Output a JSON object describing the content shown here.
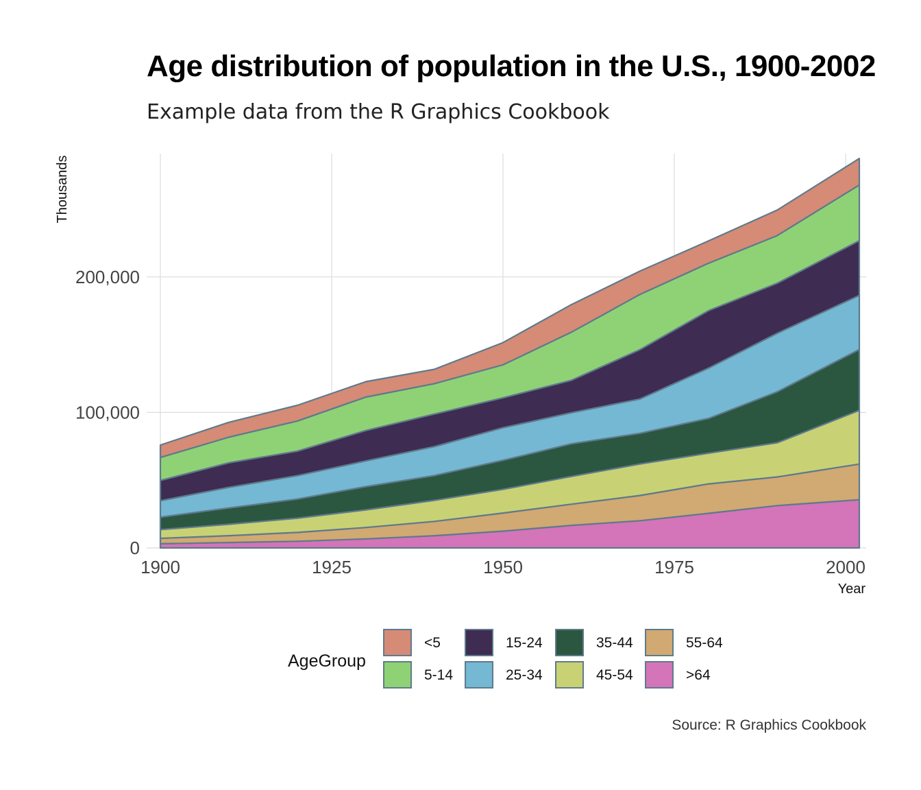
{
  "chart_data": {
    "type": "area",
    "stacked": true,
    "title": "Age distribution of population in the U.S., 1900-2002",
    "subtitle": "Example data from the R Graphics Cookbook",
    "caption": "Source: R Graphics Cookbook",
    "xlabel": "Year",
    "ylabel": "Thousands",
    "xlim": [
      1898,
      2003
    ],
    "ylim": [
      0,
      291000
    ],
    "x_ticks": [
      1900,
      1925,
      1950,
      1975,
      2000
    ],
    "x_tick_labels": [
      "1900",
      "1925",
      "1950",
      "1975",
      "2000"
    ],
    "y_ticks": [
      0,
      100000,
      200000
    ],
    "y_tick_labels": [
      "0",
      "100,000",
      "200,000"
    ],
    "grid": true,
    "legend_title": "AgeGroup",
    "legend_position": "bottom",
    "outline_color": "#5f7a8c",
    "x": [
      1900,
      1910,
      1920,
      1930,
      1940,
      1950,
      1960,
      1970,
      1980,
      1990,
      2002
    ],
    "series": [
      {
        "name": ">64",
        "color": "#d474b9",
        "values": [
          3099,
          3986,
          4929,
          6705,
          9031,
          12397,
          16675,
          20107,
          25550,
          31235,
          35602
        ]
      },
      {
        "name": "55-64",
        "color": "#d1a972",
        "values": [
          4009,
          5056,
          6532,
          8397,
          10572,
          13370,
          15627,
          18590,
          21700,
          21148,
          26306
        ]
      },
      {
        "name": "45-54",
        "color": "#c8d274",
        "values": [
          6396,
          8440,
          10505,
          12969,
          15512,
          17453,
          20485,
          23235,
          22708,
          25223,
          39617
        ]
      },
      {
        "name": "35-44",
        "color": "#2b5740",
        "values": [
          9206,
          12005,
          14121,
          17199,
          18333,
          21450,
          24081,
          22696,
          25635,
          37578,
          44919
        ]
      },
      {
        "name": "25-34",
        "color": "#74b8d3",
        "values": [
          12113,
          15207,
          17239,
          18954,
          21339,
          24036,
          22919,
          25292,
          37082,
          43175,
          39928
        ]
      },
      {
        "name": "15-24",
        "color": "#3f2c52",
        "values": [
          14951,
          18155,
          18124,
          22484,
          24033,
          22098,
          24020,
          36496,
          42487,
          37013,
          40413
        ]
      },
      {
        "name": "5-14",
        "color": "#8fd275",
        "values": [
          16994,
          18863,
          22240,
          24626,
          22431,
          24319,
          35465,
          40746,
          34942,
          35095,
          41064
        ]
      },
      {
        "name": "<5",
        "color": "#d58b76",
        "values": [
          9170,
          11027,
          11573,
          11372,
          10579,
          16410,
          20341,
          17156,
          16458,
          18853,
          19540
        ]
      }
    ]
  },
  "legend": {
    "columns": [
      [
        "<5",
        "5-14"
      ],
      [
        "15-24",
        "25-34"
      ],
      [
        "35-44",
        "45-54"
      ],
      [
        "55-64",
        ">64"
      ]
    ]
  }
}
